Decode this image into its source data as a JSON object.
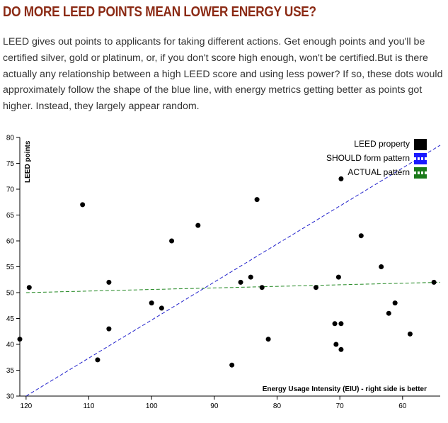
{
  "header": {
    "title": "DO MORE LEED POINTS MEAN LOWER ENERGY USE?",
    "description": "LEED gives out points to applicants for taking different actions. Get enough points and you'll be certified silver, gold or platinum, or, if you don't score high enough, won't be certified.But is there actually any relationship between a high LEED score and using less power? If so, these dots would approximately follow the shape of the blue line, with energy metrics getting better as points got higher. Instead, they largely appear random."
  },
  "colors": {
    "title": "#8b2a14",
    "points": "#000000",
    "should_line": "#2222cc",
    "actual_line": "#228822",
    "legend_should": "#1a1aff",
    "legend_actual": "#1a7a1a"
  },
  "chart_data": {
    "type": "scatter",
    "xlabel": "Energy Usage Intensity (EIU) - right side is better",
    "ylabel": "LEED points",
    "xlim": [
      121,
      54
    ],
    "ylim": [
      30,
      80
    ],
    "x_reversed": true,
    "x_ticks": [
      120,
      110,
      100,
      90,
      80,
      70,
      60
    ],
    "y_ticks": [
      30,
      35,
      40,
      45,
      50,
      55,
      60,
      65,
      70,
      75,
      80
    ],
    "legend": {
      "placement": "top-right",
      "entries": [
        "LEED property",
        "SHOULD form pattern",
        "ACTUAL pattern"
      ]
    },
    "series": [
      {
        "name": "LEED property",
        "points": [
          {
            "x": 121,
            "y": 41
          },
          {
            "x": 119.5,
            "y": 51
          },
          {
            "x": 111,
            "y": 67
          },
          {
            "x": 108.6,
            "y": 37
          },
          {
            "x": 106.8,
            "y": 52
          },
          {
            "x": 106.8,
            "y": 43
          },
          {
            "x": 100,
            "y": 48
          },
          {
            "x": 98.4,
            "y": 47
          },
          {
            "x": 96.8,
            "y": 60
          },
          {
            "x": 92.6,
            "y": 63
          },
          {
            "x": 87.2,
            "y": 36
          },
          {
            "x": 85.8,
            "y": 52
          },
          {
            "x": 84.2,
            "y": 53
          },
          {
            "x": 83.2,
            "y": 68
          },
          {
            "x": 82.4,
            "y": 51
          },
          {
            "x": 81.4,
            "y": 41
          },
          {
            "x": 73.8,
            "y": 51
          },
          {
            "x": 70.8,
            "y": 44
          },
          {
            "x": 70.6,
            "y": 40
          },
          {
            "x": 70.2,
            "y": 53
          },
          {
            "x": 69.8,
            "y": 72
          },
          {
            "x": 69.8,
            "y": 44
          },
          {
            "x": 69.8,
            "y": 39
          },
          {
            "x": 66.6,
            "y": 61
          },
          {
            "x": 63.4,
            "y": 55
          },
          {
            "x": 62.2,
            "y": 46
          },
          {
            "x": 61.2,
            "y": 48
          },
          {
            "x": 58.8,
            "y": 42
          },
          {
            "x": 55,
            "y": 52
          }
        ]
      },
      {
        "name": "SHOULD form pattern",
        "line": [
          {
            "x": 120,
            "y": 30
          },
          {
            "x": 54,
            "y": 78.5
          }
        ]
      },
      {
        "name": "ACTUAL pattern",
        "line": [
          {
            "x": 120,
            "y": 50
          },
          {
            "x": 54,
            "y": 52
          }
        ]
      }
    ]
  }
}
